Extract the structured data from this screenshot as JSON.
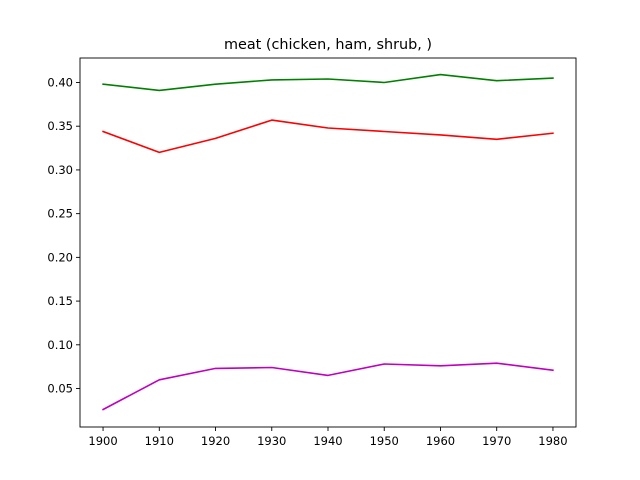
{
  "chart_data": {
    "type": "line",
    "title": "meat (chicken, ham, shrub, )",
    "xlabel": "",
    "ylabel": "",
    "x": [
      1900,
      1910,
      1920,
      1930,
      1940,
      1950,
      1960,
      1970,
      1980
    ],
    "x_ticks": [
      "1900",
      "1910",
      "1920",
      "1930",
      "1940",
      "1950",
      "1960",
      "1970",
      "1980"
    ],
    "y_ticks": [
      "0.05",
      "0.10",
      "0.15",
      "0.20",
      "0.25",
      "0.30",
      "0.35",
      "0.40"
    ],
    "xlim": [
      1895.9,
      1984.1
    ],
    "ylim": [
      0.006,
      0.428
    ],
    "grid": false,
    "legend": "none",
    "series": [
      {
        "color": "#008000",
        "values": [
          0.398,
          0.391,
          0.398,
          0.403,
          0.404,
          0.4,
          0.409,
          0.402,
          0.405
        ]
      },
      {
        "color": "#ff0000",
        "values": [
          0.344,
          0.32,
          0.336,
          0.357,
          0.348,
          0.344,
          0.34,
          0.335,
          0.342
        ]
      },
      {
        "color": "#bf00bf",
        "values": [
          0.026,
          0.06,
          0.073,
          0.074,
          0.065,
          0.078,
          0.076,
          0.079,
          0.071
        ]
      }
    ]
  }
}
